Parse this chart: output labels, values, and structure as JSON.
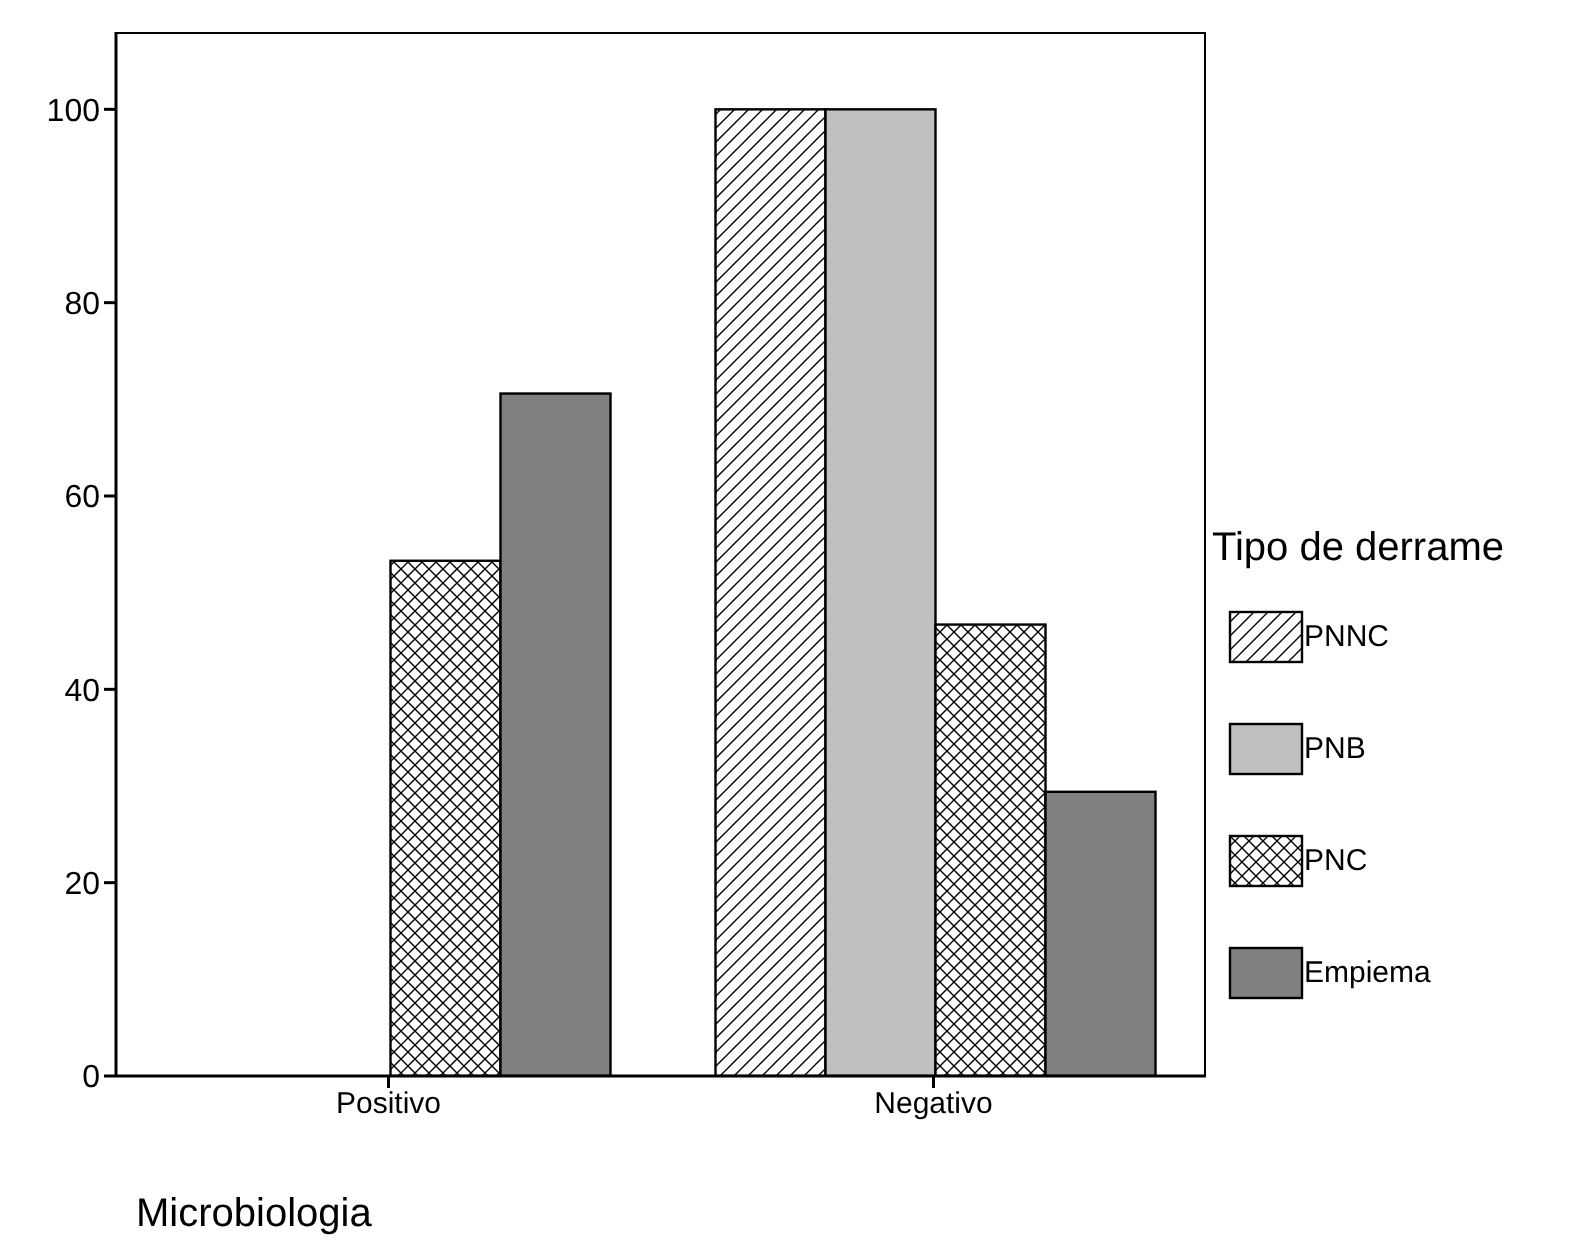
{
  "chart_data": {
    "type": "bar",
    "xlabel": "Microbiologia",
    "legend_title": "Tipo de derrame",
    "legend": "right",
    "categories": [
      "Positivo",
      "Negativo"
    ],
    "series": [
      {
        "name": "PNNC",
        "color": "#ffffff",
        "values": [
          0,
          100
        ]
      },
      {
        "name": "PNB",
        "color": "#c0c0c0",
        "values": [
          0,
          100
        ]
      },
      {
        "name": "PNC",
        "color": "#ffffff",
        "values": [
          53.3,
          46.7
        ]
      },
      {
        "name": "Empiema",
        "color": "#808080",
        "values": [
          70.6,
          29.4
        ]
      }
    ],
    "ylim": [
      0,
      108
    ],
    "yticks": [
      0,
      20,
      40,
      60,
      80,
      100
    ]
  }
}
